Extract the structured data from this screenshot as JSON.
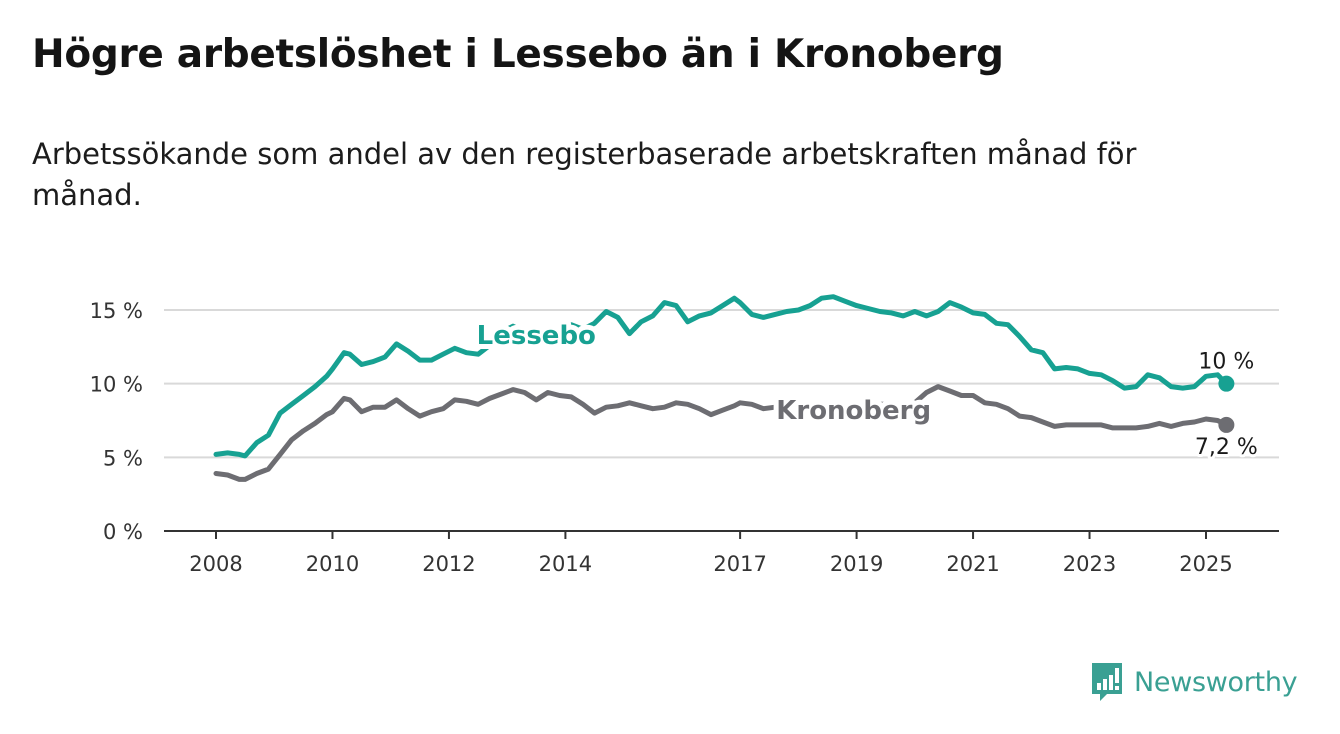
{
  "title": "Högre arbetslöshet i Lessebo än i Kronoberg",
  "subtitle": "Arbetssökande som andel av den registerbaserade arbetskraften månad för månad.",
  "brand": "Newsworthy",
  "chart_data": {
    "type": "line",
    "title": "Högre arbetslöshet i Lessebo än i Kronoberg",
    "subtitle": "Arbetssökande som andel av den registerbaserade arbetskraften månad för månad.",
    "xlabel": "",
    "ylabel": "",
    "ylim": [
      0,
      17
    ],
    "yticks": [
      0,
      5,
      10,
      15
    ],
    "ytick_labels": [
      "0 %",
      "5 %",
      "10 %",
      "15 %"
    ],
    "xticks": [
      2008,
      2010,
      2012,
      2014,
      2017,
      2019,
      2021,
      2023,
      2025
    ],
    "xtick_labels": [
      "2008",
      "2010",
      "2012",
      "2014",
      "2017",
      "2019",
      "2021",
      "2023",
      "2025"
    ],
    "xlim": [
      2007.5,
      2026.2
    ],
    "grid": "horizontal",
    "colors": {
      "Lessebo": "#17a192",
      "Kronoberg": "#6d6d72"
    },
    "series": [
      {
        "name": "Lessebo",
        "color": "#17a192",
        "end_label": "10 %",
        "x": [
          2008.0,
          2008.2,
          2008.4,
          2008.5,
          2008.7,
          2008.9,
          2009.1,
          2009.3,
          2009.5,
          2009.7,
          2009.9,
          2010.0,
          2010.2,
          2010.3,
          2010.5,
          2010.7,
          2010.9,
          2011.1,
          2011.3,
          2011.5,
          2011.7,
          2011.9,
          2012.1,
          2012.3,
          2012.5,
          2012.7,
          2012.9,
          2013.1,
          2013.3,
          2013.5,
          2013.7,
          2013.9,
          2014.1,
          2014.3,
          2014.5,
          2014.7,
          2014.9,
          2015.1,
          2015.3,
          2015.5,
          2015.7,
          2015.9,
          2016.1,
          2016.3,
          2016.5,
          2016.7,
          2016.9,
          2017.0,
          2017.2,
          2017.4,
          2017.6,
          2017.8,
          2018.0,
          2018.2,
          2018.4,
          2018.6,
          2018.8,
          2019.0,
          2019.2,
          2019.4,
          2019.6,
          2019.8,
          2020.0,
          2020.2,
          2020.4,
          2020.6,
          2020.8,
          2021.0,
          2021.2,
          2021.4,
          2021.6,
          2021.8,
          2022.0,
          2022.2,
          2022.4,
          2022.6,
          2022.8,
          2023.0,
          2023.2,
          2023.4,
          2023.6,
          2023.8,
          2024.0,
          2024.2,
          2024.4,
          2024.6,
          2024.8,
          2025.0,
          2025.2,
          2025.35
        ],
        "values": [
          5.2,
          5.3,
          5.2,
          5.1,
          6.0,
          6.5,
          8.0,
          8.6,
          9.2,
          9.8,
          10.5,
          11.0,
          12.1,
          12.0,
          11.3,
          11.5,
          11.8,
          12.7,
          12.2,
          11.6,
          11.6,
          12.0,
          12.4,
          12.1,
          12.0,
          12.6,
          13.5,
          13.9,
          13.5,
          13.3,
          13.4,
          13.6,
          14.0,
          13.7,
          14.1,
          14.9,
          14.5,
          13.4,
          14.2,
          14.6,
          15.5,
          15.3,
          14.2,
          14.6,
          14.8,
          15.3,
          15.8,
          15.5,
          14.7,
          14.5,
          14.7,
          14.9,
          15.0,
          15.3,
          15.8,
          15.9,
          15.6,
          15.3,
          15.1,
          14.9,
          14.8,
          14.6,
          14.9,
          14.6,
          14.9,
          15.5,
          15.2,
          14.8,
          14.7,
          14.1,
          14.0,
          13.2,
          12.3,
          12.1,
          11.0,
          11.1,
          11.0,
          10.7,
          10.6,
          10.2,
          9.7,
          9.8,
          10.6,
          10.4,
          9.8,
          9.7,
          9.8,
          10.5,
          10.6,
          10.0
        ]
      },
      {
        "name": "Kronoberg",
        "color": "#6d6d72",
        "end_label": "7,2 %",
        "x": [
          2008.0,
          2008.2,
          2008.4,
          2008.5,
          2008.7,
          2008.9,
          2009.1,
          2009.3,
          2009.5,
          2009.7,
          2009.9,
          2010.0,
          2010.2,
          2010.3,
          2010.5,
          2010.7,
          2010.9,
          2011.1,
          2011.3,
          2011.5,
          2011.7,
          2011.9,
          2012.1,
          2012.3,
          2012.5,
          2012.7,
          2012.9,
          2013.1,
          2013.3,
          2013.5,
          2013.7,
          2013.9,
          2014.1,
          2014.3,
          2014.5,
          2014.7,
          2014.9,
          2015.1,
          2015.3,
          2015.5,
          2015.7,
          2015.9,
          2016.1,
          2016.3,
          2016.5,
          2016.7,
          2016.9,
          2017.0,
          2017.2,
          2017.4,
          2017.6,
          2017.8,
          2018.0,
          2018.2,
          2018.4,
          2018.6,
          2018.8,
          2019.0,
          2019.2,
          2019.4,
          2019.6,
          2019.8,
          2020.0,
          2020.2,
          2020.4,
          2020.6,
          2020.8,
          2021.0,
          2021.2,
          2021.4,
          2021.6,
          2021.8,
          2022.0,
          2022.2,
          2022.4,
          2022.6,
          2022.8,
          2023.0,
          2023.2,
          2023.4,
          2023.6,
          2023.8,
          2024.0,
          2024.2,
          2024.4,
          2024.6,
          2024.8,
          2025.0,
          2025.2,
          2025.35
        ],
        "values": [
          3.9,
          3.8,
          3.5,
          3.5,
          3.9,
          4.2,
          5.2,
          6.2,
          6.8,
          7.3,
          7.9,
          8.1,
          9.0,
          8.9,
          8.1,
          8.4,
          8.4,
          8.9,
          8.3,
          7.8,
          8.1,
          8.3,
          8.9,
          8.8,
          8.6,
          9.0,
          9.3,
          9.6,
          9.4,
          8.9,
          9.4,
          9.2,
          9.1,
          8.6,
          8.0,
          8.4,
          8.5,
          8.7,
          8.5,
          8.3,
          8.4,
          8.7,
          8.6,
          8.3,
          7.9,
          8.2,
          8.5,
          8.7,
          8.6,
          8.3,
          8.4,
          8.6,
          8.6,
          8.5,
          8.4,
          8.3,
          8.3,
          8.4,
          8.6,
          8.6,
          8.6,
          8.6,
          8.7,
          9.4,
          9.8,
          9.5,
          9.2,
          9.2,
          8.7,
          8.6,
          8.3,
          7.8,
          7.7,
          7.4,
          7.1,
          7.2,
          7.2,
          7.2,
          7.2,
          7.0,
          7.0,
          7.0,
          7.1,
          7.3,
          7.1,
          7.3,
          7.4,
          7.6,
          7.5,
          7.2
        ]
      }
    ]
  }
}
